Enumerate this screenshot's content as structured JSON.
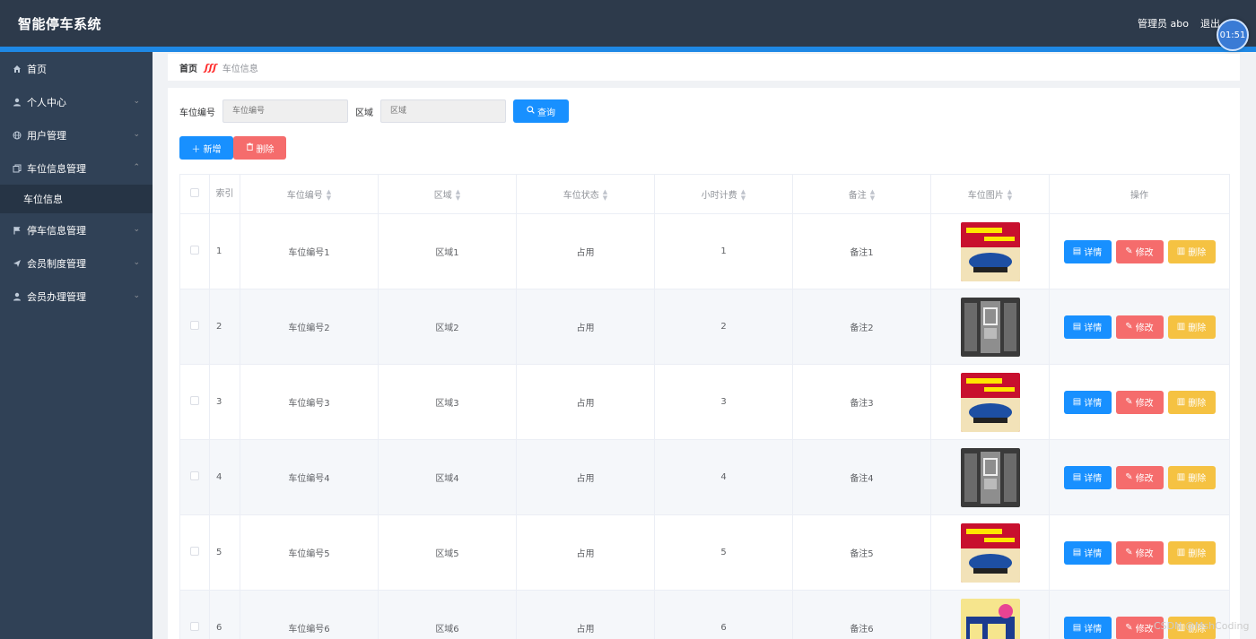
{
  "header": {
    "brand": "智能停车系统",
    "user": "管理员 abo",
    "logout": "退出"
  },
  "timer": "01:51",
  "sidebar": {
    "items": [
      {
        "label": "首页",
        "icon": "home-icon"
      },
      {
        "label": "个人中心",
        "icon": "user-icon"
      },
      {
        "label": "用户管理",
        "icon": "globe-icon"
      },
      {
        "label": "车位信息管理",
        "icon": "copy-icon"
      },
      {
        "label": "车位信息"
      },
      {
        "label": "停车信息管理",
        "icon": "flag-icon"
      },
      {
        "label": "会员制度管理",
        "icon": "send-icon"
      },
      {
        "label": "会员办理管理",
        "icon": "user-icon"
      }
    ]
  },
  "breadcrumb": {
    "home": "首页",
    "current": "车位信息"
  },
  "search": {
    "label1": "车位编号",
    "placeholder1": "车位编号",
    "label2": "区域",
    "placeholder2": "区域",
    "query": "查询"
  },
  "actions": {
    "add": "新增",
    "delete": "删除"
  },
  "table": {
    "headers": [
      "索引",
      "车位编号",
      "区域",
      "车位状态",
      "小时计费",
      "备注",
      "车位图片",
      "操作"
    ],
    "rows": [
      {
        "index": "1",
        "code": "车位编号1",
        "area": "区域1",
        "status": "占用",
        "fee": "1",
        "note": "备注1"
      },
      {
        "index": "2",
        "code": "车位编号2",
        "area": "区域2",
        "status": "占用",
        "fee": "2",
        "note": "备注2"
      },
      {
        "index": "3",
        "code": "车位编号3",
        "area": "区域3",
        "status": "占用",
        "fee": "3",
        "note": "备注3"
      },
      {
        "index": "4",
        "code": "车位编号4",
        "area": "区域4",
        "status": "占用",
        "fee": "4",
        "note": "备注4"
      },
      {
        "index": "5",
        "code": "车位编号5",
        "area": "区域5",
        "status": "占用",
        "fee": "5",
        "note": "备注5"
      },
      {
        "index": "6",
        "code": "车位编号6",
        "area": "区域6",
        "status": "占用",
        "fee": "6",
        "note": "备注6"
      }
    ],
    "row_buttons": {
      "detail": "详情",
      "edit": "修改",
      "delete": "删除"
    }
  },
  "watermark": "CSDN @MshCoding",
  "colors": {
    "header": "#2d3a4b",
    "sidebar": "#304156",
    "primary": "#1890ff",
    "danger": "#f56c6c",
    "warning": "#f5c242"
  }
}
